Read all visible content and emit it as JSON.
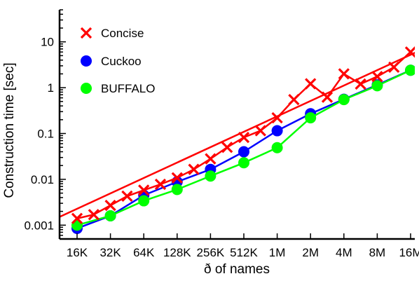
{
  "chart_data": {
    "type": "line",
    "xlabel": "ð of names",
    "ylabel": "Construction time [sec]",
    "y_scale": "log",
    "ylim": [
      0.0005,
      50
    ],
    "y_ticks": [
      {
        "value": 0.001,
        "label": "0.001"
      },
      {
        "value": 0.01,
        "label": "0.01"
      },
      {
        "value": 0.1,
        "label": "0.1"
      },
      {
        "value": 1,
        "label": "1"
      },
      {
        "value": 10,
        "label": "10"
      }
    ],
    "categories": [
      "16K",
      "32K",
      "64K",
      "128K",
      "256K",
      "512K",
      "1M",
      "2M",
      "4M",
      "8M",
      "16M"
    ],
    "grid": false,
    "legend_position": "top-left",
    "series": [
      {
        "name": "Concise",
        "color": "#ff0000",
        "marker": "x",
        "points": [
          [
            0.0,
            0.0014
          ],
          [
            0.5,
            0.0017
          ],
          [
            1.0,
            0.0027
          ],
          [
            1.5,
            0.0043
          ],
          [
            2.0,
            0.0058
          ],
          [
            2.5,
            0.0078
          ],
          [
            3.0,
            0.0108
          ],
          [
            3.5,
            0.0165
          ],
          [
            4.0,
            0.028
          ],
          [
            4.5,
            0.05
          ],
          [
            5.0,
            0.082
          ],
          [
            5.5,
            0.115
          ],
          [
            6.0,
            0.22
          ],
          [
            6.5,
            0.55
          ],
          [
            7.0,
            1.22
          ],
          [
            7.5,
            0.62
          ],
          [
            8.0,
            2.0
          ],
          [
            8.5,
            1.2
          ],
          [
            9.0,
            1.75
          ],
          [
            9.5,
            2.8
          ],
          [
            10.0,
            6.0
          ]
        ],
        "fit_line": [
          [
            -1.0,
            0.00105
          ],
          [
            10.3,
            6.6
          ]
        ]
      },
      {
        "name": "Cuckoo",
        "color": "#0000ff",
        "marker": "circle",
        "points": [
          [
            0.0,
            0.00085
          ],
          [
            1.0,
            0.0016
          ],
          [
            2.0,
            0.0045
          ],
          [
            3.0,
            0.0088
          ],
          [
            4.0,
            0.0165
          ],
          [
            5.0,
            0.04
          ],
          [
            6.0,
            0.115
          ],
          [
            7.0,
            0.27
          ],
          [
            8.0,
            0.56
          ],
          [
            9.0,
            1.15
          ],
          [
            10.0,
            2.4
          ]
        ]
      },
      {
        "name": "BUFFALO",
        "color": "#00ff00",
        "marker": "circle",
        "points": [
          [
            0.0,
            0.001
          ],
          [
            1.0,
            0.0016
          ],
          [
            2.0,
            0.0034
          ],
          [
            3.0,
            0.006
          ],
          [
            4.0,
            0.0118
          ],
          [
            5.0,
            0.023
          ],
          [
            6.0,
            0.049
          ],
          [
            7.0,
            0.22
          ],
          [
            8.0,
            0.55
          ],
          [
            9.0,
            1.1
          ],
          [
            10.0,
            2.4
          ]
        ],
        "fit_line": [
          [
            10.0,
            2.4
          ],
          [
            10.3,
            2.95
          ]
        ]
      }
    ]
  }
}
